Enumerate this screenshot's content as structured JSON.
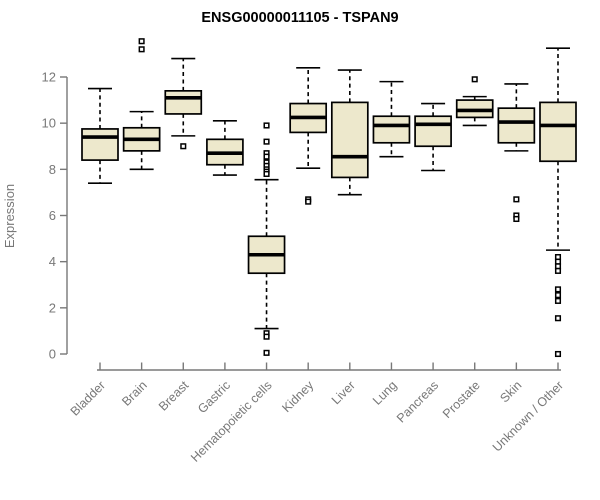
{
  "header": {
    "title": "ENSG00000011105 - TSPAN9"
  },
  "colors": {
    "box_fill": "#EDE8CC",
    "box_stroke": "#000000",
    "median_stroke": "#000000",
    "whisker_stroke": "#000000",
    "axis_color": "#787878",
    "title_color": "#000000",
    "background": "#ffffff"
  },
  "chart_data": {
    "type": "boxplot",
    "title": "ENSG00000011105 - TSPAN9",
    "xlabel": "",
    "ylabel": "Expression",
    "ylim": [
      0,
      12
    ],
    "yticks": [
      0,
      2,
      4,
      6,
      8,
      10,
      12
    ],
    "grid": "off",
    "legend": "none",
    "categories": [
      "Bladder",
      "Brain",
      "Breast",
      "Gastric",
      "Hematopoietic cells",
      "Kidney",
      "Liver",
      "Lung",
      "Pancreas",
      "Prostate",
      "Skin",
      "Unknown / Other"
    ],
    "series": [
      {
        "label": "Bladder",
        "whisker_low": 7.4,
        "q1": 8.4,
        "median": 9.4,
        "q3": 9.75,
        "whisker_high": 11.5,
        "outliers": []
      },
      {
        "label": "Brain",
        "whisker_low": 8.0,
        "q1": 8.8,
        "median": 9.3,
        "q3": 9.8,
        "whisker_high": 10.5,
        "outliers": [
          13.55,
          13.2
        ]
      },
      {
        "label": "Breast",
        "whisker_low": 9.45,
        "q1": 10.4,
        "median": 11.1,
        "q3": 11.4,
        "whisker_high": 12.8,
        "outliers": [
          9.0
        ]
      },
      {
        "label": "Gastric",
        "whisker_low": 7.75,
        "q1": 8.2,
        "median": 8.7,
        "q3": 9.3,
        "whisker_high": 10.1,
        "outliers": []
      },
      {
        "label": "Hematopoietic cells",
        "whisker_low": 1.1,
        "q1": 3.5,
        "median": 4.3,
        "q3": 5.1,
        "whisker_high": 7.55,
        "outliers": [
          9.9,
          9.2,
          8.7,
          8.55,
          8.3,
          8.15,
          8.0,
          7.9,
          7.8,
          0.9,
          0.75,
          0.05
        ]
      },
      {
        "label": "Kidney",
        "whisker_low": 8.05,
        "q1": 9.6,
        "median": 10.25,
        "q3": 10.85,
        "whisker_high": 12.4,
        "outliers": [
          6.7,
          6.6
        ]
      },
      {
        "label": "Liver",
        "whisker_low": 6.9,
        "q1": 7.65,
        "median": 8.55,
        "q3": 10.9,
        "whisker_high": 12.3,
        "outliers": []
      },
      {
        "label": "Lung",
        "whisker_low": 8.55,
        "q1": 9.15,
        "median": 9.9,
        "q3": 10.3,
        "whisker_high": 11.8,
        "outliers": []
      },
      {
        "label": "Pancreas",
        "whisker_low": 7.95,
        "q1": 9.0,
        "median": 9.95,
        "q3": 10.3,
        "whisker_high": 10.85,
        "outliers": []
      },
      {
        "label": "Prostate",
        "whisker_low": 9.9,
        "q1": 10.25,
        "median": 10.55,
        "q3": 11.0,
        "whisker_high": 11.15,
        "outliers": [
          11.9
        ]
      },
      {
        "label": "Skin",
        "whisker_low": 8.8,
        "q1": 9.15,
        "median": 10.05,
        "q3": 10.65,
        "whisker_high": 11.7,
        "outliers": [
          6.7,
          6.0,
          5.85
        ]
      },
      {
        "label": "Unknown / Other",
        "whisker_low": 4.5,
        "q1": 8.35,
        "median": 9.9,
        "q3": 10.9,
        "whisker_high": 13.25,
        "outliers": [
          4.2,
          4.0,
          3.8,
          3.6,
          2.8,
          2.55,
          2.3,
          1.55,
          0.0
        ]
      }
    ]
  }
}
